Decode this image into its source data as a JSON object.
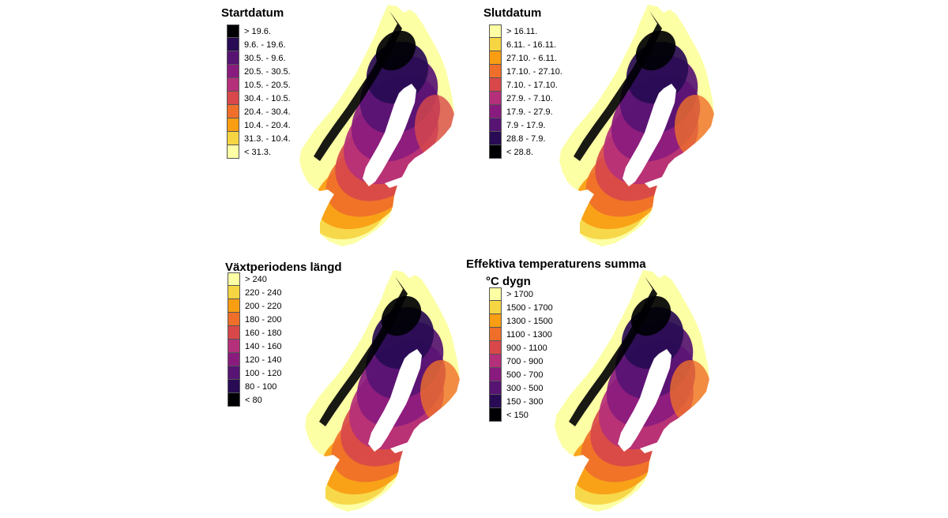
{
  "palette": [
    "#fcffa4",
    "#f6d543",
    "#f99d12",
    "#ef6f2a",
    "#d8484a",
    "#b5307a",
    "#8a1b7e",
    "#571473",
    "#280b54",
    "#000004"
  ],
  "panels": [
    {
      "title": "Startdatum",
      "subtitle": "",
      "map_style": "start",
      "legend": [
        {
          "label": "> 19.6.",
          "color": "#000004"
        },
        {
          "label": "9.6. - 19.6.",
          "color": "#280b54"
        },
        {
          "label": "30.5. - 9.6.",
          "color": "#571473"
        },
        {
          "label": "20.5. - 30.5.",
          "color": "#8a1b7e"
        },
        {
          "label": "10.5. - 20.5.",
          "color": "#b5307a"
        },
        {
          "label": "30.4. - 10.5.",
          "color": "#d8484a"
        },
        {
          "label": "20.4. - 30.4.",
          "color": "#ef6f2a"
        },
        {
          "label": "10.4. - 20.4.",
          "color": "#f99d12"
        },
        {
          "label": "31.3. - 10.4.",
          "color": "#f6d543"
        },
        {
          "label": "< 31.3.",
          "color": "#fcffa4"
        }
      ]
    },
    {
      "title": "Slutdatum",
      "subtitle": "",
      "map_style": "end",
      "legend": [
        {
          "label": "> 16.11.",
          "color": "#fcffa4"
        },
        {
          "label": "6.11. - 16.11.",
          "color": "#f6d543"
        },
        {
          "label": "27.10. - 6.11.",
          "color": "#f99d12"
        },
        {
          "label": "17.10. - 27.10.",
          "color": "#ef6f2a"
        },
        {
          "label": "7.10. - 17.10.",
          "color": "#d8484a"
        },
        {
          "label": "27.9. - 7.10.",
          "color": "#b5307a"
        },
        {
          "label": "17.9. - 27.9.",
          "color": "#8a1b7e"
        },
        {
          "label": "7.9 - 17.9.",
          "color": "#571473"
        },
        {
          "label": "28.8 - 7.9.",
          "color": "#280b54"
        },
        {
          "label": "< 28.8.",
          "color": "#000004"
        }
      ]
    },
    {
      "title": "Växtperiodens längd",
      "subtitle": "",
      "map_style": "length",
      "legend": [
        {
          "label": "> 240",
          "color": "#fcffa4"
        },
        {
          "label": "220 - 240",
          "color": "#f6d543"
        },
        {
          "label": "200 - 220",
          "color": "#f99d12"
        },
        {
          "label": "180 - 200",
          "color": "#ef6f2a"
        },
        {
          "label": "160 - 180",
          "color": "#d8484a"
        },
        {
          "label": "140 - 160",
          "color": "#b5307a"
        },
        {
          "label": "120 - 140",
          "color": "#8a1b7e"
        },
        {
          "label": "100 - 120",
          "color": "#571473"
        },
        {
          "label": "80 - 100",
          "color": "#280b54"
        },
        {
          "label": "< 80",
          "color": "#000004"
        }
      ]
    },
    {
      "title": "Effektiva temperaturens summa",
      "subtitle": "°C dygn",
      "map_style": "sum",
      "legend": [
        {
          "label": "> 1700",
          "color": "#fcffa4"
        },
        {
          "label": "1500 - 1700",
          "color": "#f6d543"
        },
        {
          "label": "1300 - 1500",
          "color": "#f99d12"
        },
        {
          "label": "1100 - 1300",
          "color": "#ef6f2a"
        },
        {
          "label": "900 - 1100",
          "color": "#d8484a"
        },
        {
          "label": "700 - 900",
          "color": "#b5307a"
        },
        {
          "label": "500 - 700",
          "color": "#8a1b7e"
        },
        {
          "label": "300 - 500",
          "color": "#571473"
        },
        {
          "label": "150 - 300",
          "color": "#280b54"
        },
        {
          "label": "< 150",
          "color": "#000004"
        }
      ]
    }
  ]
}
